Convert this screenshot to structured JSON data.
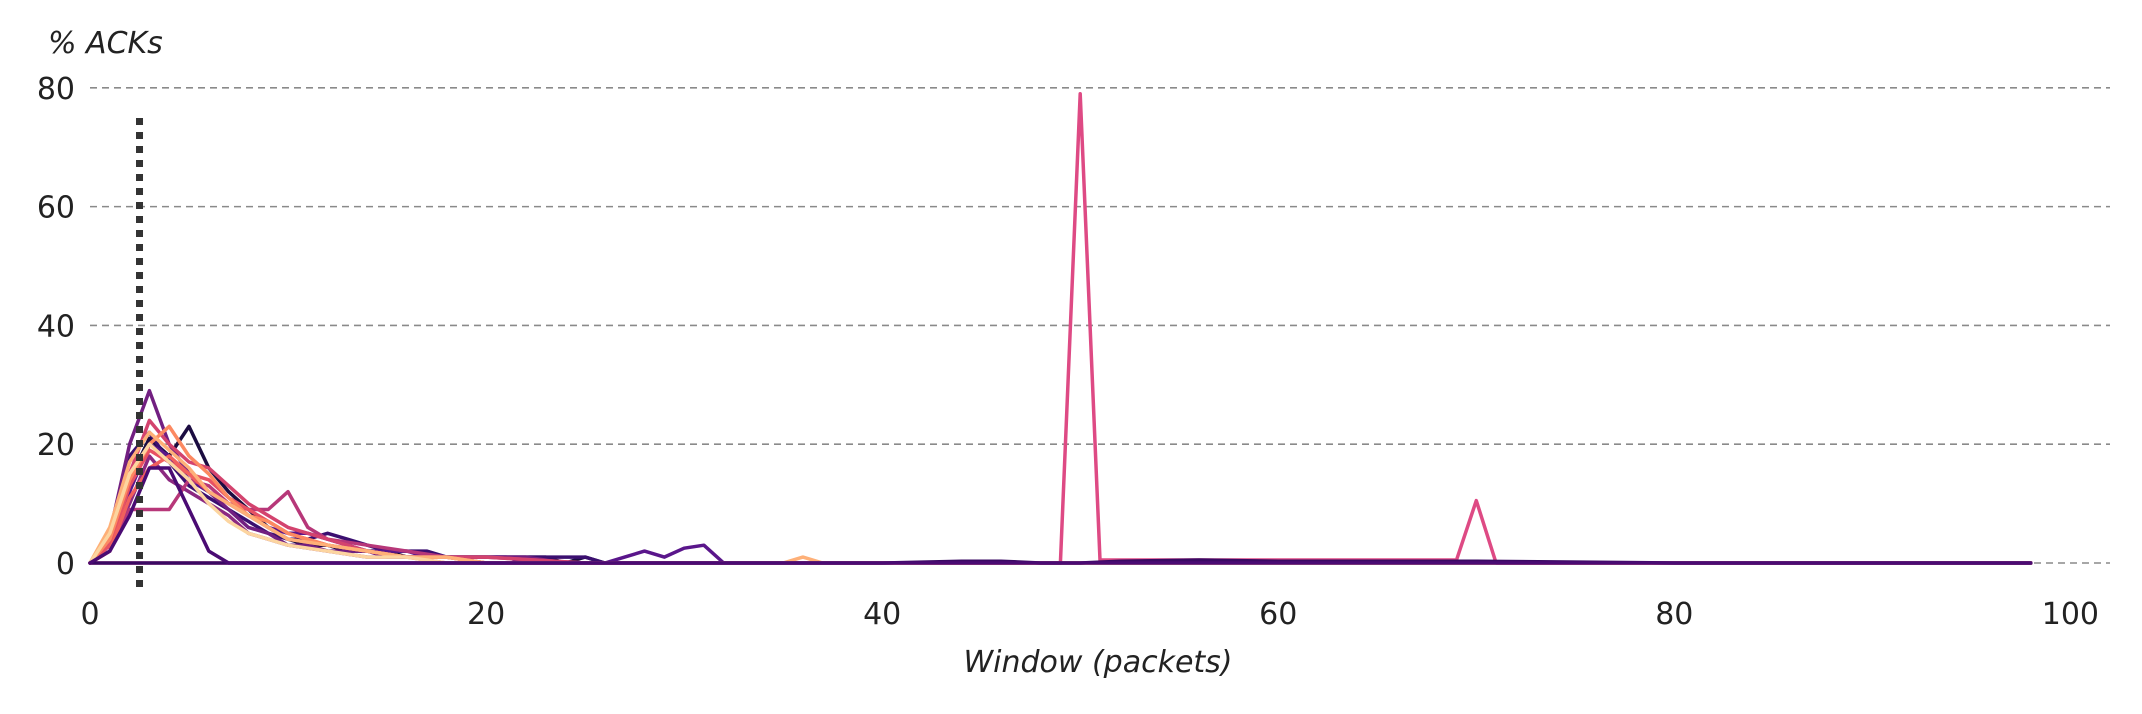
{
  "chart_data": {
    "type": "line",
    "title": "",
    "ylabel": "% ACKs",
    "xlabel": "Window (packets)",
    "xlim": [
      0,
      102
    ],
    "ylim": [
      0,
      83
    ],
    "xticks": [
      "0",
      "20",
      "40",
      "60",
      "80",
      "100"
    ],
    "yticks": [
      "0",
      "20",
      "40",
      "60",
      "80"
    ],
    "grid": "horizontal dashed",
    "reference_line": {
      "x": 2.5,
      "style": "dotted",
      "color": "#333333"
    },
    "series": [
      {
        "color": "#1b0c41",
        "x": [
          0,
          1,
          2,
          3,
          4,
          5,
          6,
          7,
          8,
          9,
          10,
          11,
          12,
          13,
          14,
          15,
          16,
          17,
          18,
          19,
          20,
          21,
          22,
          23,
          24,
          25,
          26,
          28,
          30,
          32,
          35,
          40,
          45,
          50,
          55,
          60,
          70,
          80,
          90,
          98
        ],
        "y": [
          0,
          4,
          14,
          21,
          18,
          23,
          16,
          12,
          9,
          6,
          4,
          3,
          3,
          2,
          2,
          2,
          1,
          1,
          1,
          1,
          1,
          1,
          1,
          1,
          0,
          1,
          0,
          0,
          0,
          0,
          0,
          0,
          0,
          0,
          0,
          0,
          0,
          0,
          0,
          0
        ]
      },
      {
        "color": "#3b0f70",
        "x": [
          0,
          1,
          2,
          3,
          4,
          5,
          6,
          7,
          8,
          9,
          10,
          11,
          12,
          13,
          14,
          15,
          16,
          17,
          18,
          19,
          20,
          21,
          22,
          23,
          24,
          25,
          26,
          28,
          30,
          32,
          35,
          40,
          45,
          50,
          55,
          60,
          70,
          80,
          90,
          98
        ],
        "y": [
          0,
          3,
          18,
          22,
          17,
          13,
          11,
          9,
          7,
          5,
          4,
          4,
          5,
          4,
          3,
          2,
          2,
          2,
          1,
          1,
          1,
          1,
          1,
          1,
          1,
          1,
          0,
          0,
          0,
          0,
          0,
          0,
          0,
          0,
          0,
          0,
          0,
          0,
          0,
          0
        ]
      },
      {
        "color": "#5a168b",
        "x": [
          0,
          1,
          2,
          3,
          4,
          5,
          6,
          7,
          8,
          9,
          10,
          11,
          12,
          13,
          14,
          15,
          16,
          17,
          18,
          19,
          20,
          21,
          22,
          23,
          24,
          25,
          26,
          27,
          28,
          29,
          30,
          31,
          32,
          33,
          35,
          40,
          45,
          50,
          55,
          60,
          70,
          80,
          90,
          98
        ],
        "y": [
          0,
          2,
          12,
          20,
          18,
          14,
          12,
          10,
          8,
          6,
          5,
          5,
          4,
          3,
          2,
          2,
          2,
          1,
          1,
          1,
          1,
          1,
          0,
          0,
          0,
          0,
          0,
          1,
          2,
          1,
          2.5,
          3,
          0,
          0,
          0,
          0,
          0,
          0,
          0,
          0,
          0,
          0,
          0,
          0
        ]
      },
      {
        "color": "#721f81",
        "x": [
          0,
          1,
          2,
          3,
          4,
          5,
          6,
          7,
          8,
          9,
          10,
          11,
          12,
          13,
          14,
          15,
          16,
          18,
          20,
          22,
          24,
          26,
          28,
          30,
          35,
          40,
          45,
          50,
          55,
          60,
          70,
          80,
          90,
          98
        ],
        "y": [
          0,
          5,
          20,
          29,
          20,
          15,
          12,
          9,
          6,
          5,
          3,
          3,
          2,
          2,
          2,
          1,
          1,
          1,
          1,
          1,
          0,
          0,
          0,
          0,
          0,
          0,
          0,
          0,
          0,
          0,
          0,
          0,
          0,
          0
        ]
      },
      {
        "color": "#8c2981",
        "x": [
          0,
          1,
          2,
          3,
          4,
          5,
          6,
          7,
          8,
          9,
          10,
          12,
          14,
          16,
          18,
          20,
          25,
          30,
          35,
          40,
          45,
          50,
          55,
          60,
          70,
          80,
          90,
          98
        ],
        "y": [
          0,
          3,
          10,
          18,
          14,
          12,
          10,
          8,
          5,
          4,
          3,
          2,
          1,
          1,
          1,
          0,
          0,
          0,
          0,
          0,
          0,
          0,
          0,
          0,
          0,
          0,
          0,
          0
        ]
      },
      {
        "color": "#b73779",
        "x": [
          0,
          1,
          2,
          3,
          4,
          5,
          6,
          7,
          8,
          9,
          10,
          11,
          12,
          14,
          16,
          18,
          20,
          25,
          30,
          35,
          40,
          45,
          50,
          55,
          60,
          70,
          80,
          90,
          98
        ],
        "y": [
          0,
          2,
          9,
          9,
          9,
          14,
          13,
          10,
          9,
          9,
          12,
          6,
          4,
          3,
          2,
          1,
          1,
          0,
          0,
          0,
          0,
          0,
          0,
          0,
          0,
          0,
          0,
          0,
          0
        ]
      },
      {
        "color": "#d3436e",
        "x": [
          0,
          1,
          2,
          3,
          4,
          5,
          6,
          7,
          8,
          9,
          10,
          11,
          12,
          13,
          14,
          16,
          18,
          20,
          25,
          30,
          35,
          40,
          45,
          50,
          55,
          60,
          70,
          80,
          90,
          98
        ],
        "y": [
          0,
          4,
          15,
          24,
          20,
          17,
          16,
          13,
          10,
          8,
          6,
          5,
          4,
          3,
          2,
          1,
          1,
          1,
          0,
          0,
          0,
          0,
          0,
          0,
          0,
          0,
          0,
          0,
          0,
          0
        ]
      },
      {
        "color": "#e75263",
        "x": [
          0,
          1,
          2,
          3,
          4,
          5,
          6,
          7,
          8,
          9,
          10,
          12,
          14,
          16,
          18,
          20,
          25,
          30,
          35,
          40,
          45,
          50,
          55,
          60,
          70,
          80,
          90,
          98
        ],
        "y": [
          0,
          3,
          13,
          19,
          17,
          15,
          14,
          11,
          9,
          7,
          5,
          3,
          2,
          1,
          1,
          0,
          0,
          0,
          0,
          0,
          0,
          0,
          0,
          0,
          0,
          0,
          0,
          0
        ]
      },
      {
        "color": "#f1605d",
        "x": [
          0,
          1,
          2,
          3,
          4,
          5,
          6,
          7,
          8,
          9,
          10,
          12,
          14,
          16,
          18,
          20,
          25,
          30,
          35,
          40,
          45,
          50,
          55,
          60,
          70,
          80,
          90,
          98
        ],
        "y": [
          0,
          2,
          11,
          16,
          18,
          15,
          12,
          10,
          8,
          6,
          4,
          3,
          2,
          1,
          0,
          0,
          0,
          0,
          0,
          0,
          0,
          0,
          0,
          0,
          0,
          0,
          0,
          0
        ]
      },
      {
        "color": "#fc8961",
        "x": [
          0,
          1,
          2,
          3,
          4,
          5,
          6,
          7,
          8,
          9,
          10,
          12,
          14,
          16,
          18,
          20,
          25,
          30,
          35,
          40,
          45,
          50,
          55,
          60,
          70,
          80,
          90,
          98
        ],
        "y": [
          0,
          4,
          14,
          20,
          23,
          18,
          15,
          11,
          8,
          7,
          5,
          3,
          2,
          1,
          1,
          0,
          0,
          0,
          0,
          0,
          0,
          0,
          0,
          0,
          0,
          0,
          0,
          0
        ]
      },
      {
        "color": "#feb078",
        "x": [
          0,
          1,
          2,
          3,
          4,
          5,
          6,
          7,
          8,
          9,
          10,
          12,
          14,
          16,
          18,
          20,
          25,
          30,
          34,
          35,
          36,
          37,
          40,
          45,
          50,
          55,
          60,
          70,
          80,
          90,
          98
        ],
        "y": [
          0,
          6,
          17,
          22,
          19,
          16,
          12,
          10,
          8,
          6,
          4,
          3,
          2,
          1,
          1,
          0,
          0,
          0,
          0,
          0,
          1,
          0,
          0,
          0,
          0,
          0,
          0,
          0,
          0,
          0,
          0
        ]
      },
      {
        "color": "#fcd5a0",
        "x": [
          0,
          1,
          2,
          3,
          4,
          5,
          6,
          7,
          8,
          9,
          10,
          12,
          14,
          16,
          18,
          20,
          25,
          30,
          35,
          40,
          45,
          50,
          55,
          60,
          70,
          80,
          90,
          98
        ],
        "y": [
          0,
          5,
          15,
          20,
          17,
          14,
          10,
          7,
          5,
          4,
          3,
          2,
          1,
          1,
          0,
          0,
          0,
          0,
          0,
          0,
          0,
          0,
          0,
          0,
          0,
          0,
          0,
          0
        ]
      },
      {
        "color": "#de4a84",
        "x": [
          0,
          1,
          2,
          3,
          4,
          5,
          6,
          7,
          8,
          9,
          10,
          12,
          14,
          16,
          18,
          20,
          25,
          30,
          35,
          40,
          45,
          49,
          50,
          51,
          55,
          60,
          65,
          69,
          70,
          71,
          75,
          80,
          90,
          98
        ],
        "y": [
          0,
          0,
          0,
          0,
          0,
          0,
          0,
          0,
          0,
          0,
          0,
          0,
          0,
          0,
          0,
          0,
          0,
          0,
          0,
          0,
          0,
          0,
          79,
          0.5,
          0.5,
          0.5,
          0.5,
          0.5,
          10.5,
          0,
          0,
          0,
          0,
          0
        ]
      },
      {
        "color": "#3a0963",
        "x": [
          0,
          2,
          4,
          6,
          8,
          10,
          20,
          30,
          40,
          44,
          46,
          48,
          50,
          52,
          56,
          60,
          66,
          70,
          80,
          90,
          98
        ],
        "y": [
          0,
          0,
          0,
          0,
          0,
          0,
          0,
          0,
          0,
          0.3,
          0.3,
          0,
          0,
          0.3,
          0.5,
          0.3,
          0.3,
          0.3,
          0,
          0,
          0
        ]
      },
      {
        "color": "#4a0b73",
        "x": [
          0,
          1,
          2,
          3,
          4,
          5,
          6,
          7,
          8,
          9,
          10,
          12,
          14,
          16,
          18,
          20,
          25,
          30,
          35,
          40,
          45,
          50,
          55,
          60,
          70,
          80,
          90,
          98
        ],
        "y": [
          0,
          2,
          8,
          16,
          16,
          9,
          2,
          0,
          0,
          0,
          0,
          0,
          0,
          0,
          0,
          0,
          0,
          0,
          0,
          0,
          0,
          0,
          0,
          0,
          0,
          0,
          0,
          0
        ]
      }
    ]
  }
}
